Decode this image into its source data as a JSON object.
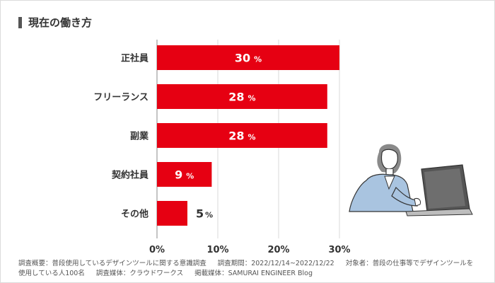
{
  "title": "現在の働き方",
  "footnote": {
    "survey_overview": "調査概要：普段使用しているデザインツールに関する意識調査",
    "survey_period": "調査期間：2022/12/14~2022/12/22",
    "subjects": "対象者：普段の仕事等でデザインツールを使用している人100名",
    "survey_medium": "調査媒体：クラウドワークス",
    "publication": "掲載媒体：SAMURAI ENGINEER Blog"
  },
  "colors": {
    "bar": "#e60012",
    "grid": "#d9d9d9",
    "axis": "#888888",
    "text": "#333333"
  },
  "chart_data": {
    "type": "bar",
    "orientation": "horizontal",
    "categories": [
      "正社員",
      "フリーランス",
      "副業",
      "契約社員",
      "その他"
    ],
    "values": [
      30,
      28,
      28,
      9,
      5
    ],
    "value_unit": "%",
    "xlim": [
      0,
      30
    ],
    "xticks": [
      0,
      10,
      20,
      30
    ],
    "xtick_labels": [
      "0%",
      "10%",
      "20%",
      "30%"
    ],
    "grid": true
  }
}
